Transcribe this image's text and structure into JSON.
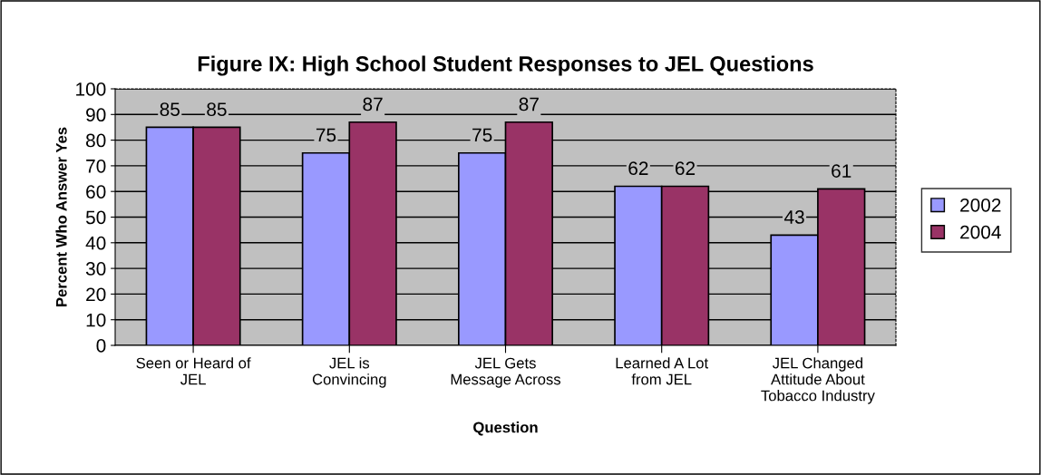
{
  "chart_data": {
    "type": "bar",
    "title": "Figure IX: High School Student Responses to JEL Questions",
    "xlabel": "Question",
    "ylabel": "Percent Who Answer Yes",
    "categories": [
      "Seen or Heard of\nJEL",
      "JEL is\nConvincing",
      "JEL Gets\nMessage Across",
      "Learned A Lot\nfrom JEL",
      "JEL Changed\nAttitude About\nTobacco Industry"
    ],
    "series": [
      {
        "name": "2002",
        "color": "#9999ff",
        "values": [
          85,
          75,
          75,
          62,
          43
        ]
      },
      {
        "name": "2004",
        "color": "#993366",
        "values": [
          85,
          87,
          87,
          62,
          61
        ]
      }
    ],
    "ylim": [
      0,
      100
    ],
    "yticks": [
      0,
      10,
      20,
      30,
      40,
      50,
      60,
      70,
      80,
      90,
      100
    ],
    "grid": "y",
    "legend": "right",
    "data_labels": true
  }
}
